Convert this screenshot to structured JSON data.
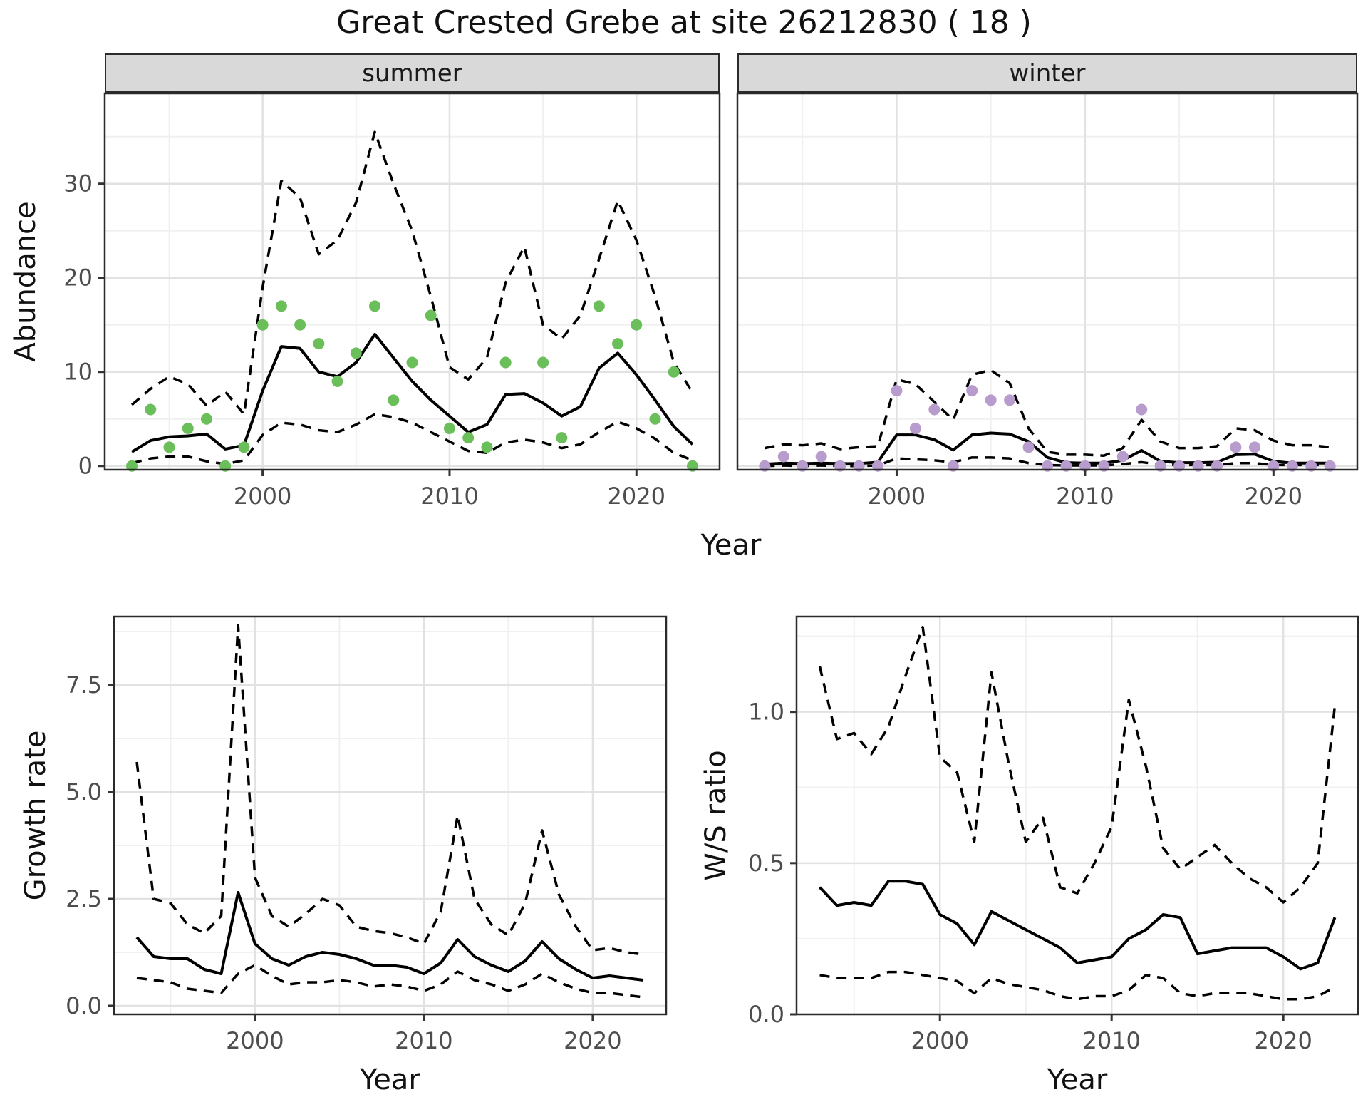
{
  "title": "Great Crested Grebe at site 26212830 ( 18 )",
  "axis_titles": {
    "abundance": "Abundance",
    "year_top": "Year",
    "growth_rate": "Growth rate",
    "year_growth": "Year",
    "ws_ratio": "W/S ratio",
    "year_ws": "Year"
  },
  "colors": {
    "summer_point": "#6abf5a",
    "winter_point": "#b79ccd",
    "line": "#000000",
    "grid_major": "#e2e2e2",
    "grid_minor": "#f0f0f0",
    "panel_border": "#2b2b2b",
    "strip_bg": "#d9d9d9",
    "tick_text": "#4d4d4d"
  },
  "chart_data": [
    {
      "id": "summer",
      "type": "line",
      "facet_label": "summer",
      "xlabel": "Year",
      "ylabel": "Abundance",
      "legend_position": "none",
      "grid": true,
      "xlim": [
        1991.55,
        2024.45
      ],
      "ylim": [
        -0.4,
        39.6
      ],
      "x_ticks": [
        2000,
        2010,
        2020
      ],
      "x_tick_labels": [
        "2000",
        "2010",
        "2020"
      ],
      "x_minor": [
        1995,
        2005,
        2015
      ],
      "y_ticks": [
        0,
        10,
        20,
        30
      ],
      "y_tick_labels": [
        "0",
        "10",
        "20",
        "30"
      ],
      "y_minor": [
        5,
        15,
        25,
        35
      ],
      "show_y_labels": true,
      "point_color": "#6abf5a",
      "years": [
        1993,
        1994,
        1995,
        1996,
        1997,
        1998,
        1999,
        2000,
        2001,
        2002,
        2003,
        2004,
        2005,
        2006,
        2007,
        2008,
        2009,
        2010,
        2011,
        2012,
        2013,
        2014,
        2015,
        2016,
        2017,
        2018,
        2019,
        2020,
        2021,
        2022,
        2023
      ],
      "observed": [
        0,
        6,
        2,
        4,
        5,
        0,
        2,
        15,
        17,
        15,
        13,
        9,
        12,
        17,
        7,
        11,
        16,
        4,
        3,
        2,
        11,
        null,
        11,
        3,
        null,
        17,
        13,
        15,
        5,
        10,
        0
      ],
      "fit": [
        1.5,
        2.7,
        3.1,
        3.2,
        3.4,
        1.8,
        2.2,
        8.0,
        12.7,
        12.5,
        10.0,
        9.5,
        11.0,
        14.0,
        11.5,
        9.0,
        7.0,
        5.3,
        3.6,
        4.4,
        7.6,
        7.7,
        6.7,
        5.3,
        6.3,
        10.4,
        12.0,
        9.7,
        7.0,
        4.2,
        2.3
      ],
      "upper_ci": [
        6.5,
        8.2,
        9.5,
        8.7,
        6.4,
        7.9,
        5.5,
        19.0,
        30.3,
        28.5,
        22.5,
        24.0,
        28.0,
        35.5,
        30.0,
        25.0,
        18.0,
        10.5,
        9.2,
        11.5,
        19.5,
        23.3,
        15.0,
        13.5,
        16.0,
        22.0,
        28.2,
        24.0,
        18.0,
        11.0,
        7.8
      ],
      "lower_ci": [
        0.3,
        0.8,
        1.0,
        1.0,
        0.5,
        0.2,
        0.6,
        3.3,
        4.6,
        4.4,
        3.8,
        3.6,
        4.4,
        5.5,
        5.2,
        4.6,
        3.6,
        2.6,
        1.6,
        1.4,
        2.5,
        2.8,
        2.5,
        1.9,
        2.3,
        3.6,
        4.7,
        4.0,
        2.9,
        1.4,
        0.6
      ]
    },
    {
      "id": "winter",
      "type": "line",
      "facet_label": "winter",
      "xlabel": "Year",
      "ylabel": "Abundance",
      "legend_position": "none",
      "grid": true,
      "xlim": [
        1991.55,
        2024.45
      ],
      "ylim": [
        -0.4,
        39.6
      ],
      "x_ticks": [
        2000,
        2010,
        2020
      ],
      "x_tick_labels": [
        "2000",
        "2010",
        "2020"
      ],
      "x_minor": [
        1995,
        2005,
        2015
      ],
      "y_ticks": [
        0,
        10,
        20,
        30
      ],
      "y_tick_labels": [
        "0",
        "10",
        "20",
        "30"
      ],
      "y_minor": [
        5,
        15,
        25,
        35
      ],
      "show_y_labels": false,
      "point_color": "#b79ccd",
      "years": [
        1993,
        1994,
        1995,
        1996,
        1997,
        1998,
        1999,
        2000,
        2001,
        2002,
        2003,
        2004,
        2005,
        2006,
        2007,
        2008,
        2009,
        2010,
        2011,
        2012,
        2013,
        2014,
        2015,
        2016,
        2017,
        2018,
        2019,
        2020,
        2021,
        2022,
        2023
      ],
      "observed": [
        0,
        1,
        0,
        1,
        0,
        0,
        0,
        8,
        4,
        6,
        0,
        8,
        7,
        7,
        2,
        0,
        0,
        0,
        0,
        1,
        6,
        0,
        0,
        0,
        0,
        2,
        2,
        0,
        0,
        0,
        0
      ],
      "fit": [
        0.2,
        0.3,
        0.25,
        0.3,
        0.25,
        0.25,
        0.4,
        3.3,
        3.3,
        2.8,
        1.7,
        3.3,
        3.5,
        3.4,
        2.6,
        0.9,
        0.35,
        0.3,
        0.3,
        0.6,
        1.65,
        0.5,
        0.35,
        0.35,
        0.4,
        1.2,
        1.25,
        0.5,
        0.3,
        0.3,
        0.3
      ],
      "upper_ci": [
        1.9,
        2.3,
        2.2,
        2.4,
        1.8,
        2.0,
        2.1,
        9.2,
        8.7,
        6.8,
        4.9,
        9.7,
        10.2,
        8.8,
        4.0,
        1.5,
        1.2,
        1.2,
        1.1,
        1.9,
        4.9,
        2.6,
        1.9,
        1.9,
        2.1,
        4.0,
        3.8,
        2.7,
        2.2,
        2.2,
        2.0
      ],
      "lower_ci": [
        0,
        0.05,
        0,
        0.05,
        0,
        0,
        0.05,
        0.8,
        0.7,
        0.6,
        0.4,
        0.9,
        0.9,
        0.8,
        0.3,
        0.1,
        0.05,
        0.05,
        0.05,
        0.2,
        0.4,
        0.15,
        0.1,
        0.1,
        0.1,
        0.3,
        0.3,
        0.1,
        0.1,
        0.1,
        0.1
      ]
    },
    {
      "id": "growth",
      "type": "line",
      "facet_label": "",
      "xlabel": "Year",
      "ylabel": "Growth rate",
      "legend_position": "none",
      "grid": true,
      "xlim": [
        1991.65,
        2024.35
      ],
      "ylim": [
        -0.2,
        9.1
      ],
      "x_ticks": [
        2000,
        2010,
        2020
      ],
      "x_tick_labels": [
        "2000",
        "2010",
        "2020"
      ],
      "x_minor": [
        1995,
        2005,
        2015
      ],
      "y_ticks": [
        0,
        2.5,
        5,
        7.5
      ],
      "y_tick_labels": [
        "0.0",
        "2.5",
        "5.0",
        "7.5"
      ],
      "y_minor": [
        1.25,
        3.75,
        6.25,
        8.75
      ],
      "show_y_labels": true,
      "years": [
        1993,
        1994,
        1995,
        1996,
        1997,
        1998,
        1999,
        2000,
        2001,
        2002,
        2003,
        2004,
        2005,
        2006,
        2007,
        2008,
        2009,
        2010,
        2011,
        2012,
        2013,
        2014,
        2015,
        2016,
        2017,
        2018,
        2019,
        2020,
        2021,
        2022,
        2023
      ],
      "fit": [
        1.6,
        1.15,
        1.1,
        1.1,
        0.85,
        0.75,
        2.65,
        1.45,
        1.1,
        0.95,
        1.15,
        1.25,
        1.2,
        1.1,
        0.95,
        0.95,
        0.9,
        0.75,
        1.0,
        1.55,
        1.15,
        0.95,
        0.8,
        1.05,
        1.5,
        1.1,
        0.85,
        0.65,
        0.7,
        0.65,
        0.6
      ],
      "upper_ci": [
        5.7,
        2.5,
        2.4,
        1.9,
        1.7,
        2.1,
        8.9,
        3.0,
        2.1,
        1.85,
        2.15,
        2.5,
        2.35,
        1.85,
        1.75,
        1.7,
        1.6,
        1.45,
        2.2,
        4.45,
        2.5,
        1.9,
        1.65,
        2.4,
        4.1,
        2.6,
        1.85,
        1.3,
        1.35,
        1.25,
        1.2
      ],
      "lower_ci": [
        0.65,
        0.6,
        0.55,
        0.4,
        0.35,
        0.3,
        0.75,
        0.95,
        0.7,
        0.5,
        0.55,
        0.55,
        0.6,
        0.55,
        0.45,
        0.5,
        0.45,
        0.35,
        0.5,
        0.8,
        0.6,
        0.5,
        0.35,
        0.5,
        0.75,
        0.55,
        0.4,
        0.3,
        0.3,
        0.25,
        0.2
      ]
    },
    {
      "id": "ws",
      "type": "line",
      "facet_label": "",
      "xlabel": "Year",
      "ylabel": "W/S ratio",
      "legend_position": "none",
      "grid": true,
      "xlim": [
        1991.65,
        2024.35
      ],
      "ylim": [
        0,
        1.315
      ],
      "x_ticks": [
        2000,
        2010,
        2020
      ],
      "x_tick_labels": [
        "2000",
        "2010",
        "2020"
      ],
      "x_minor": [
        1995,
        2005,
        2015
      ],
      "y_ticks": [
        0,
        0.5,
        1.0
      ],
      "y_tick_labels": [
        "0.0",
        "0.5",
        "1.0"
      ],
      "y_minor": [
        0.25,
        0.75,
        1.25
      ],
      "show_y_labels": true,
      "years": [
        1993,
        1994,
        1995,
        1996,
        1997,
        1998,
        1999,
        2000,
        2001,
        2002,
        2003,
        2004,
        2005,
        2006,
        2007,
        2008,
        2009,
        2010,
        2011,
        2012,
        2013,
        2014,
        2015,
        2016,
        2017,
        2018,
        2019,
        2020,
        2021,
        2022,
        2023
      ],
      "fit": [
        0.42,
        0.36,
        0.37,
        0.36,
        0.44,
        0.44,
        0.43,
        0.33,
        0.3,
        0.23,
        0.34,
        0.31,
        0.28,
        0.25,
        0.22,
        0.17,
        0.18,
        0.19,
        0.25,
        0.28,
        0.33,
        0.32,
        0.2,
        0.21,
        0.22,
        0.22,
        0.22,
        0.19,
        0.15,
        0.17,
        0.32
      ],
      "upper_ci": [
        1.15,
        0.91,
        0.93,
        0.86,
        0.95,
        1.12,
        1.28,
        0.85,
        0.8,
        0.57,
        1.13,
        0.83,
        0.57,
        0.65,
        0.42,
        0.4,
        0.5,
        0.62,
        1.04,
        0.82,
        0.55,
        0.48,
        0.52,
        0.56,
        0.5,
        0.45,
        0.42,
        0.37,
        0.42,
        0.5,
        1.02
      ],
      "lower_ci": [
        0.13,
        0.12,
        0.12,
        0.12,
        0.14,
        0.14,
        0.13,
        0.12,
        0.11,
        0.07,
        0.12,
        0.1,
        0.09,
        0.08,
        0.06,
        0.05,
        0.06,
        0.06,
        0.08,
        0.13,
        0.12,
        0.07,
        0.06,
        0.07,
        0.07,
        0.07,
        0.06,
        0.05,
        0.05,
        0.06,
        0.09
      ]
    }
  ]
}
